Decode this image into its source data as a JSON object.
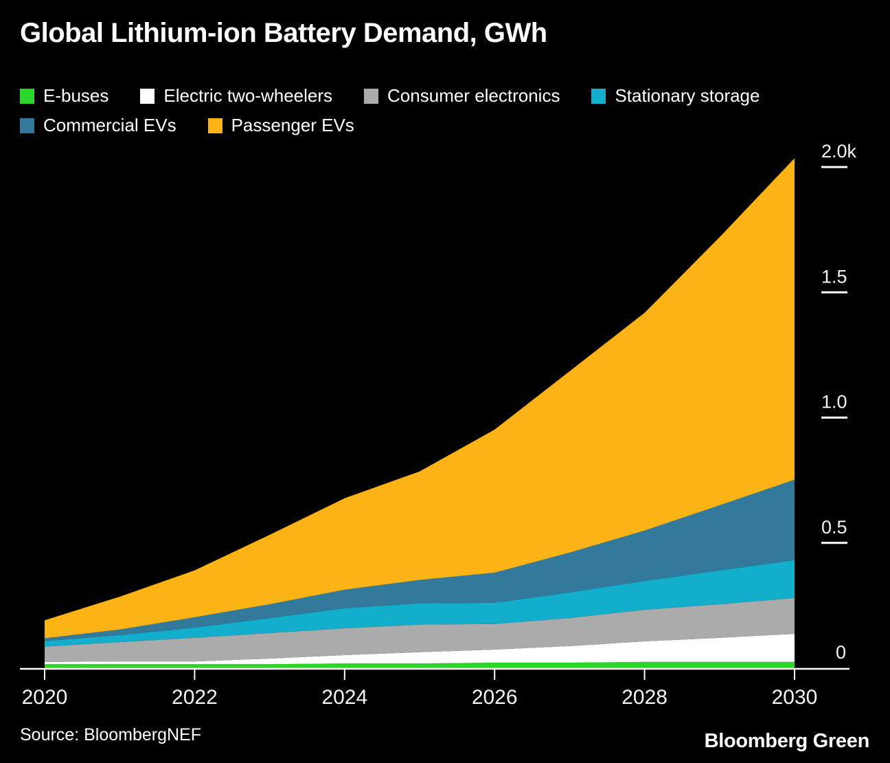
{
  "title": "Global Lithium-ion Battery Demand, GWh",
  "source": "Source: BloombergNEF",
  "brand": "Bloomberg Green",
  "colors": {
    "background": "#000000",
    "axis": "#ffffff",
    "text": "#ffffff"
  },
  "chart_data": {
    "type": "area",
    "stacked": true,
    "title": "Global Lithium-ion Battery Demand, GWh",
    "unit": "GWh",
    "x": [
      2020,
      2021,
      2022,
      2023,
      2024,
      2025,
      2026,
      2027,
      2028,
      2029,
      2030
    ],
    "series": [
      {
        "name": "E-buses",
        "color": "#2bd62b",
        "values": [
          16,
          16,
          16,
          16,
          19,
          19,
          22,
          22,
          25,
          25,
          25
        ]
      },
      {
        "name": "Electric two-wheelers",
        "color": "#ffffff",
        "values": [
          9,
          11,
          11,
          22,
          33,
          45,
          52,
          66,
          82,
          96,
          112
        ]
      },
      {
        "name": "Consumer electronics",
        "color": "#ababab",
        "values": [
          61,
          77,
          94,
          102,
          107,
          110,
          102,
          112,
          126,
          134,
          143
        ]
      },
      {
        "name": "Stationary storage",
        "color": "#13aecb",
        "values": [
          22,
          28,
          41,
          60,
          80,
          85,
          85,
          102,
          115,
          135,
          151
        ]
      },
      {
        "name": "Commercial EVs",
        "color": "#32799b",
        "values": [
          11,
          22,
          41,
          55,
          74,
          93,
          120,
          159,
          201,
          260,
          321
        ]
      },
      {
        "name": "Passenger EVs",
        "color": "#fcb315",
        "values": [
          72,
          131,
          187,
          277,
          365,
          433,
          571,
          724,
          869,
          1070,
          1283
        ]
      }
    ],
    "totals": [
      191,
      285,
      390,
      532,
      678,
      785,
      952,
      1185,
      1418,
      1720,
      2035
    ],
    "ylim": [
      0,
      2000
    ],
    "yticks": [
      {
        "value": 0,
        "label": "0"
      },
      {
        "value": 500,
        "label": "0.5"
      },
      {
        "value": 1000,
        "label": "1.0"
      },
      {
        "value": 1500,
        "label": "1.5"
      },
      {
        "value": 2000,
        "label": "2.0k"
      }
    ],
    "xticks": [
      2020,
      2022,
      2024,
      2026,
      2028,
      2030
    ],
    "legend_position": "top",
    "grid": false
  }
}
